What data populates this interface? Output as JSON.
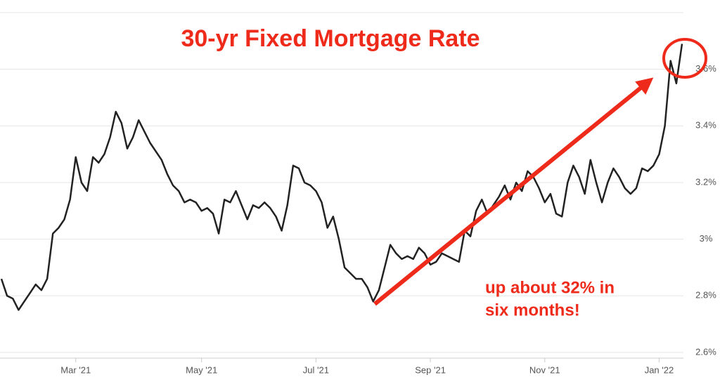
{
  "chart_data": {
    "type": "line",
    "title": "30-yr Fixed Mortgage Rate",
    "annotations": [
      "up about 32% in",
      "six months!"
    ],
    "categories": [
      null,
      null,
      null,
      null,
      null,
      null,
      null,
      null,
      null,
      null,
      null,
      null,
      null,
      "Mar '21",
      null,
      null,
      null,
      null,
      null,
      null,
      null,
      null,
      null,
      null,
      null,
      null,
      null,
      null,
      null,
      null,
      null,
      null,
      null,
      null,
      null,
      "May '21",
      null,
      null,
      null,
      null,
      null,
      null,
      null,
      null,
      null,
      null,
      null,
      null,
      null,
      null,
      null,
      null,
      null,
      null,
      null,
      "Jul '21",
      null,
      null,
      null,
      null,
      null,
      null,
      null,
      null,
      null,
      null,
      null,
      null,
      null,
      null,
      null,
      null,
      null,
      null,
      null,
      "Sep '21",
      null,
      null,
      null,
      null,
      null,
      null,
      null,
      null,
      null,
      null,
      null,
      null,
      null,
      null,
      null,
      null,
      null,
      null,
      null,
      "Nov '21",
      null,
      null,
      null,
      null,
      null,
      null,
      null,
      null,
      null,
      null,
      null,
      null,
      null,
      null,
      null,
      null,
      null,
      null,
      null,
      "Jan '22",
      null,
      null,
      null,
      null
    ],
    "series": [
      {
        "color": "#222222",
        "values": [
          2.86,
          2.8,
          2.79,
          2.75,
          2.78,
          2.81,
          2.84,
          2.82,
          2.86,
          3.02,
          3.04,
          3.07,
          3.14,
          3.29,
          3.2,
          3.17,
          3.29,
          3.27,
          3.3,
          3.36,
          3.45,
          3.41,
          3.32,
          3.36,
          3.42,
          3.38,
          3.34,
          3.31,
          3.28,
          3.23,
          3.19,
          3.17,
          3.13,
          3.14,
          3.13,
          3.1,
          3.11,
          3.09,
          3.02,
          3.14,
          3.13,
          3.17,
          3.12,
          3.07,
          3.12,
          3.11,
          3.13,
          3.11,
          3.08,
          3.03,
          3.12,
          3.26,
          3.25,
          3.2,
          3.19,
          3.17,
          3.13,
          3.04,
          3.08,
          3.0,
          2.9,
          2.88,
          2.86,
          2.86,
          2.83,
          2.78,
          2.82,
          2.9,
          2.98,
          2.95,
          2.93,
          2.94,
          2.93,
          2.97,
          2.95,
          2.91,
          2.92,
          2.95,
          2.94,
          2.93,
          2.92,
          3.03,
          3.01,
          3.1,
          3.14,
          3.09,
          3.12,
          3.15,
          3.19,
          3.14,
          3.2,
          3.17,
          3.24,
          3.22,
          3.18,
          3.13,
          3.16,
          3.09,
          3.08,
          3.2,
          3.26,
          3.22,
          3.16,
          3.28,
          3.2,
          3.13,
          3.2,
          3.25,
          3.22,
          3.18,
          3.16,
          3.18,
          3.25,
          3.24,
          3.26,
          3.3,
          3.4,
          3.63,
          3.55,
          3.69
        ]
      }
    ],
    "ylim": [
      2.58,
      3.8
    ],
    "yticks": [
      {
        "value": 2.6,
        "label": "2.6%"
      },
      {
        "value": 2.8,
        "label": "2.8%"
      },
      {
        "value": 3,
        "label": "3%"
      },
      {
        "value": 3.2,
        "label": "3.2%"
      },
      {
        "value": 3.4,
        "label": "3.4%"
      },
      {
        "value": 3.6,
        "label": "3.6%"
      }
    ],
    "grid": true
  }
}
